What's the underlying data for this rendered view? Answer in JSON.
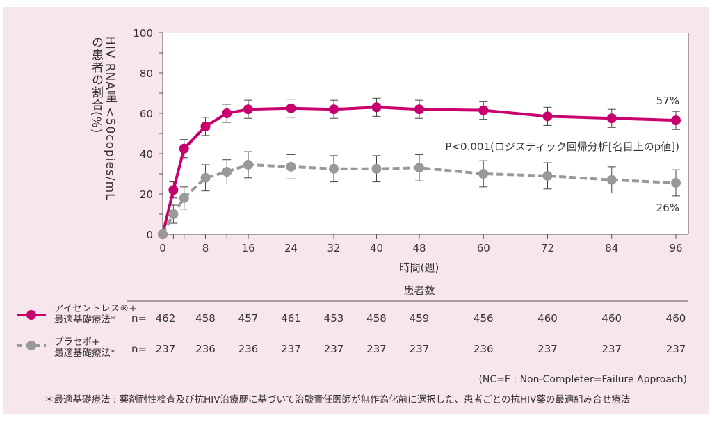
{
  "chart_data": {
    "type": "line",
    "ylabel_line1": "HIV RNA量 <50copies/mL",
    "ylabel_line2": "の患者の割合(%)",
    "xlabel": "時間(週)",
    "ylim": [
      0,
      100
    ],
    "xlim": [
      0,
      96
    ],
    "y_ticks": [
      0,
      20,
      40,
      60,
      80,
      100
    ],
    "x_ticks": [
      0,
      8,
      16,
      24,
      32,
      40,
      48,
      60,
      72,
      84,
      96
    ],
    "x": [
      0,
      2,
      4,
      8,
      12,
      16,
      24,
      32,
      40,
      48,
      60,
      72,
      84,
      96
    ],
    "series": [
      {
        "name": "アイセントレス®+最適基礎療法*",
        "color": "#c8006e",
        "style": "solid",
        "values": [
          0,
          22,
          42.5,
          53.5,
          60,
          62,
          62.5,
          62,
          63,
          62,
          61.5,
          58.5,
          57.5,
          56.5
        ],
        "err": [
          0,
          4,
          4.5,
          4.5,
          4.5,
          4.5,
          4.5,
          4.5,
          4.5,
          4.5,
          4.5,
          4.5,
          4.5,
          4.5
        ],
        "end_label": "57%"
      },
      {
        "name": "プラセボ+最適基礎療法*",
        "color": "#999999",
        "style": "dashed",
        "values": [
          0,
          10,
          18,
          28,
          31,
          34.5,
          33.5,
          32.5,
          32.5,
          33,
          30,
          29,
          27,
          25.5
        ],
        "err": [
          0,
          4.5,
          5.5,
          6.5,
          6,
          6.5,
          6,
          6.5,
          6.5,
          6.5,
          6.5,
          6.5,
          6.5,
          6.5
        ],
        "end_label": "26%"
      }
    ],
    "annotation": "P<0.001(ロジスティック回帰分析[名目上のp値])",
    "grid": false
  },
  "patients": {
    "title": "患者数",
    "prefix": "n=",
    "weeks": [
      0,
      8,
      16,
      24,
      32,
      40,
      48,
      60,
      72,
      84,
      96
    ],
    "series1": {
      "label_line1": "アイセントレス®+",
      "label_line2": "最適基礎療法*",
      "counts": [
        "462",
        "458",
        "457",
        "461",
        "453",
        "458",
        "459",
        "456",
        "460",
        "460",
        "460"
      ]
    },
    "series2": {
      "label_line1": "プラセボ+",
      "label_line2": "最適基礎療法*",
      "counts": [
        "237",
        "236",
        "236",
        "237",
        "237",
        "237",
        "237",
        "236",
        "237",
        "237",
        "237"
      ]
    }
  },
  "footnotes": {
    "method": "(NC=F : Non-Completer=Failure Approach)",
    "definition": "＊最適基礎療法 : 薬剤耐性検査及び抗HIV治療歴に基づいて治験責任医師が無作為化前に選択した、患者ごとの抗HIV薬の最適組み合せ療法"
  }
}
